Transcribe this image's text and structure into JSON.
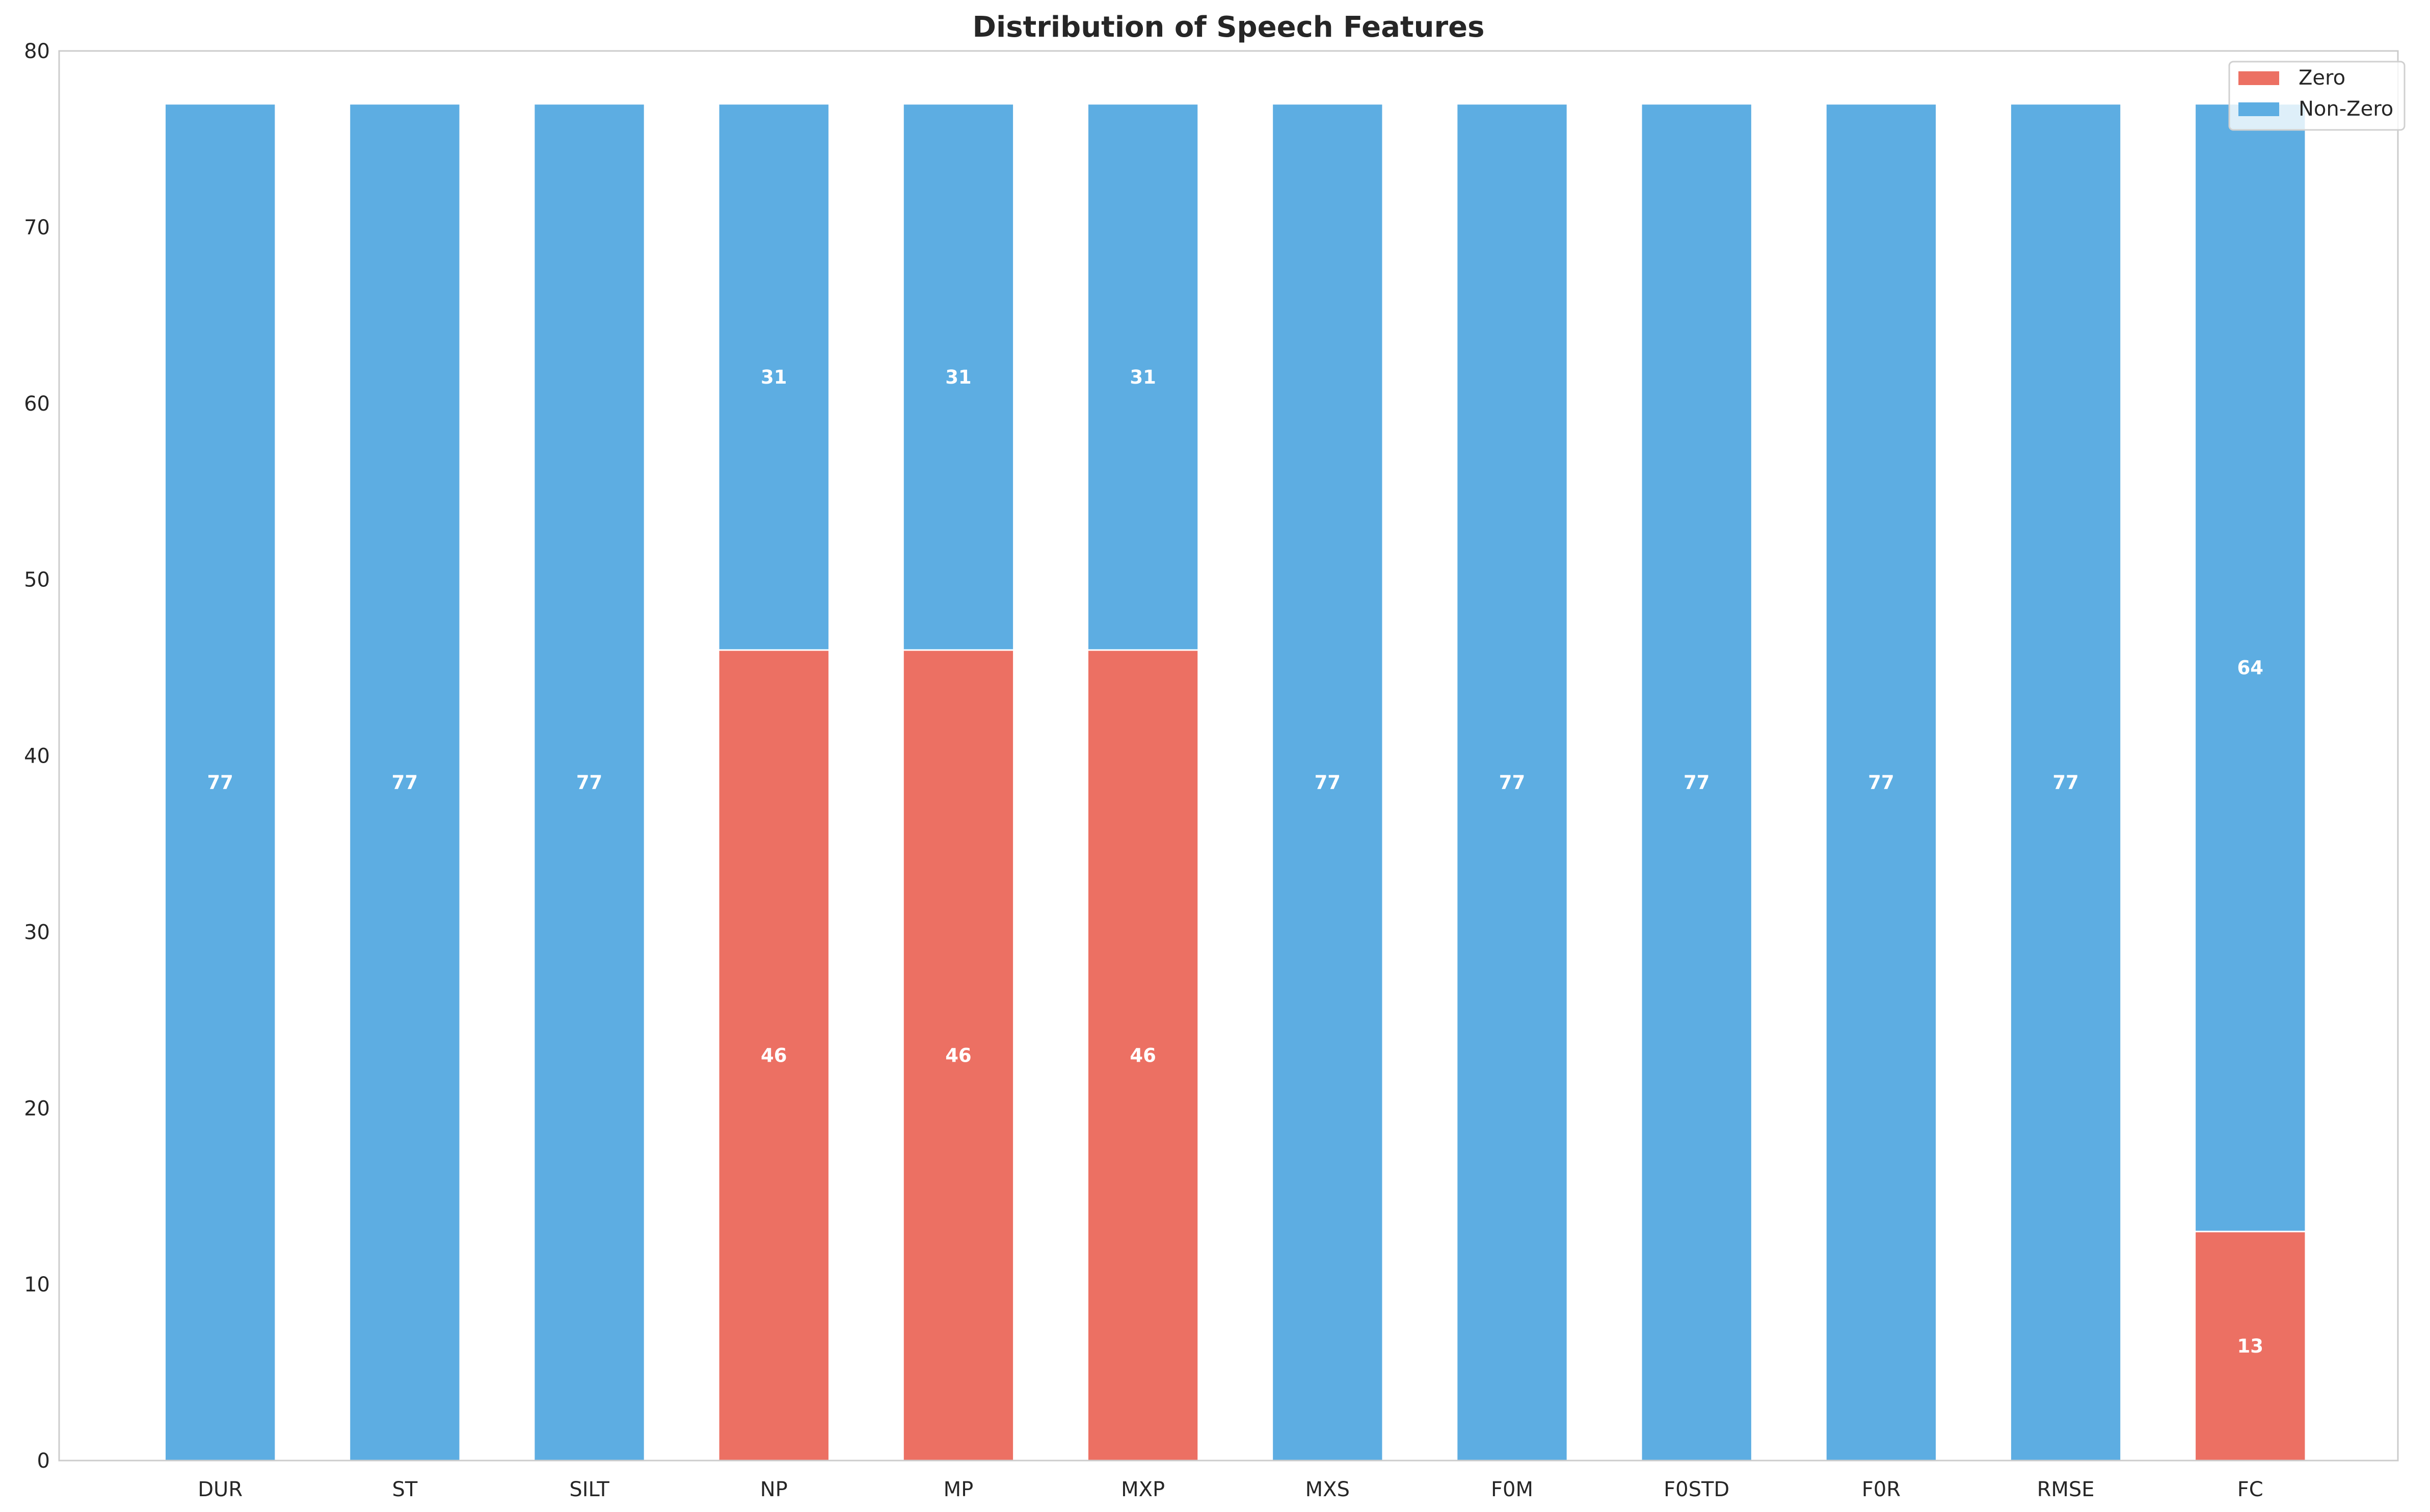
{
  "chart_data": {
    "type": "bar",
    "stacked": true,
    "title": "Distribution of Speech Features",
    "xlabel": "",
    "ylabel": "",
    "categories": [
      "DUR",
      "ST",
      "SILT",
      "NP",
      "MP",
      "MXP",
      "MXS",
      "F0M",
      "F0STD",
      "F0R",
      "RMSE",
      "FC"
    ],
    "series": [
      {
        "name": "Zero",
        "color": "#EC7063",
        "values": [
          0,
          0,
          0,
          46,
          46,
          46,
          0,
          0,
          0,
          0,
          0,
          13
        ]
      },
      {
        "name": "Non-Zero",
        "color": "#5DADE2",
        "values": [
          77,
          77,
          77,
          31,
          31,
          31,
          77,
          77,
          77,
          77,
          77,
          64
        ]
      }
    ],
    "ylim": [
      0,
      80
    ],
    "yticks": [
      0,
      10,
      20,
      30,
      40,
      50,
      60,
      70,
      80
    ],
    "grid": false,
    "legend_position": "top-right",
    "data_labels": true
  }
}
